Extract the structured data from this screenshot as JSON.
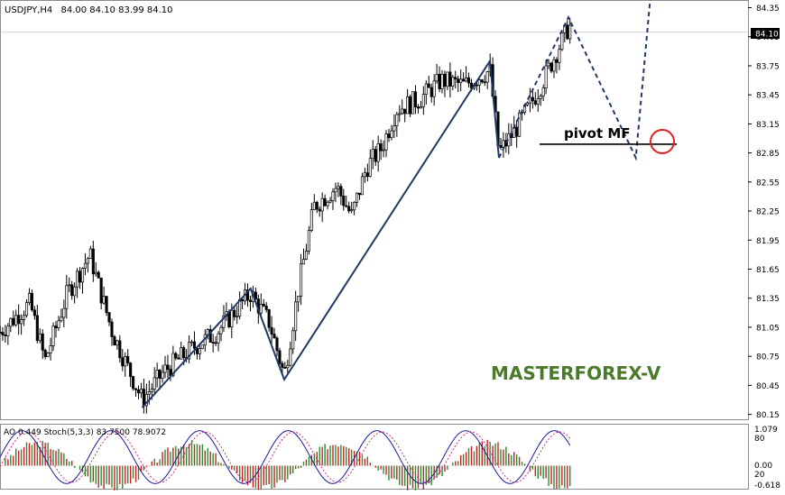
{
  "header": {
    "symbol": "USDJPY,H4",
    "ohlc": "84.00 84.10 83.99 84.10"
  },
  "price_axis": {
    "ticks": [
      "84.35",
      "84.05",
      "83.75",
      "83.45",
      "83.15",
      "82.85",
      "82.55",
      "82.25",
      "81.95",
      "81.65",
      "81.35",
      "81.05",
      "80.75",
      "80.45",
      "80.15"
    ],
    "current_label": "84.10"
  },
  "annotations": {
    "pivot": "pivot MF",
    "watermark": "MASTERFOREX-V"
  },
  "indicator": {
    "label": "AO 0.449  Stoch(5,3,3) 83.7500 78.9072",
    "ticks": [
      "1.079",
      "80",
      "0.00",
      "20",
      "-0.618"
    ]
  },
  "colors": {
    "candle": "#000000",
    "wave": "#1f3864",
    "watermark": "#4a7a2a",
    "ao_up": "#2e8b2e",
    "ao_down": "#c82020",
    "stoch_main": "#1a1aa0",
    "stoch_signal": "#c8327a",
    "marker": "#e02020"
  },
  "chart_data": {
    "type": "candlestick",
    "ylim": [
      80.1,
      84.42
    ],
    "current_price": 84.1,
    "pivot_level": 82.94,
    "waves": [
      {
        "style": "solid",
        "x": [
          0.19,
          0.335,
          0.38,
          0.655,
          0.667
        ],
        "y": [
          80.22,
          81.45,
          80.51,
          83.8,
          82.8
        ]
      },
      {
        "style": "dashed",
        "x": [
          0.667,
          0.76,
          0.85,
          0.87,
          0.89
        ],
        "y": [
          82.8,
          84.25,
          82.8,
          84.5,
          84.5
        ]
      }
    ],
    "indicator_ylim": [
      -0.618,
      1.079
    ]
  }
}
